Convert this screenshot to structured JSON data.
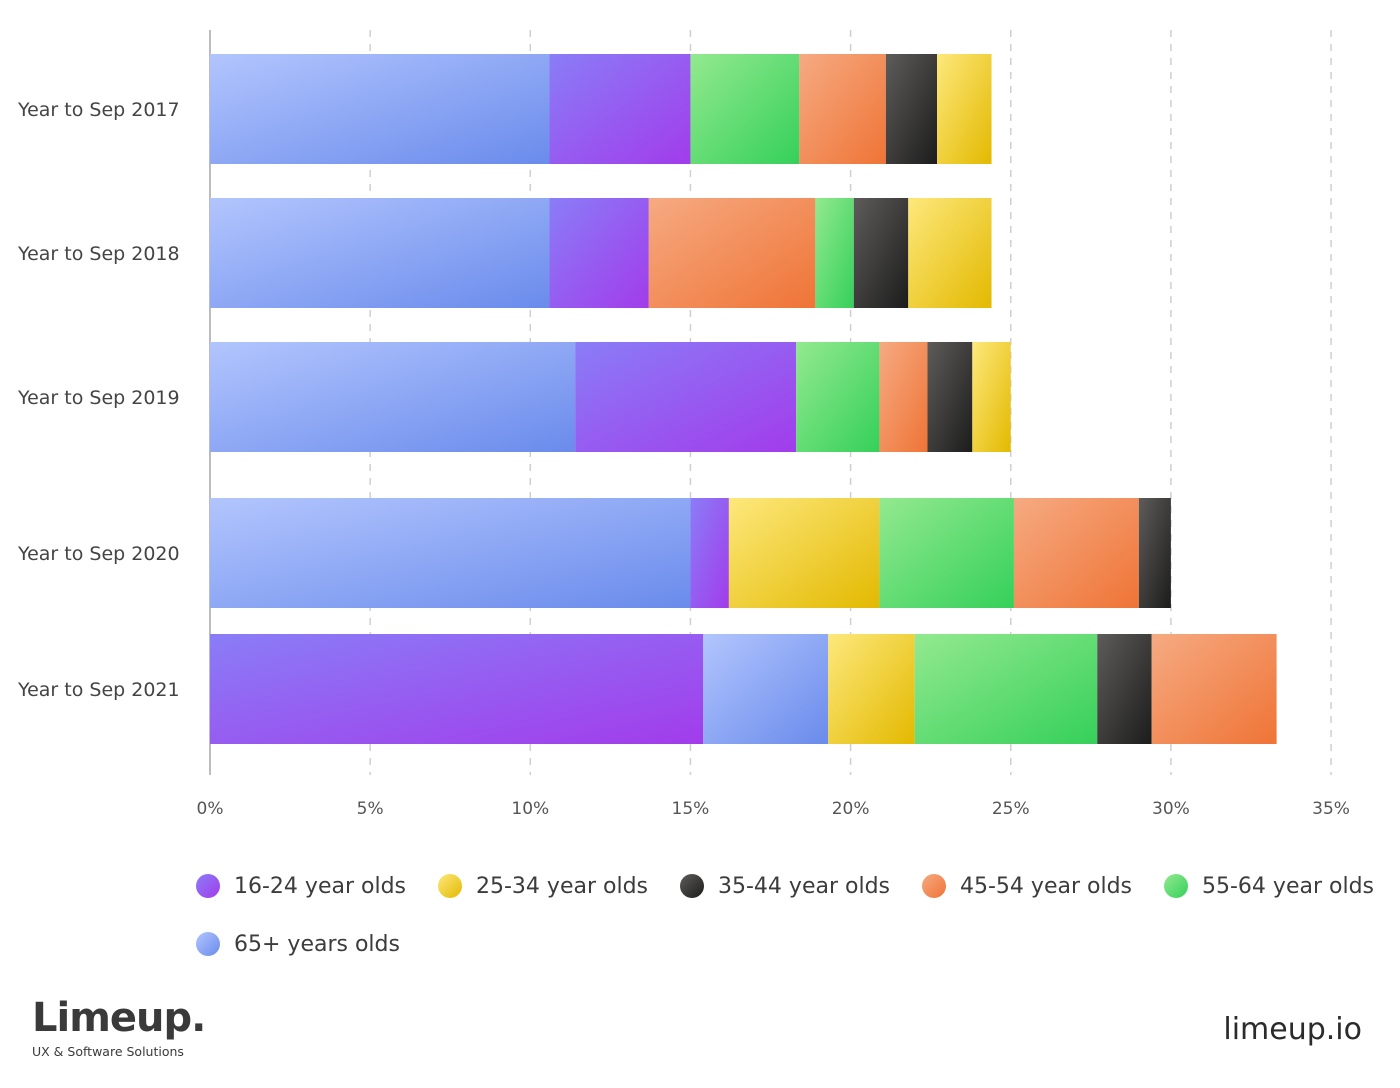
{
  "chart_data": {
    "type": "bar",
    "orientation": "horizontal",
    "stacked": true,
    "title": "",
    "xlabel": "",
    "ylabel": "",
    "xlim": [
      0,
      35
    ],
    "x_ticks": [
      "0%",
      "5%",
      "10%",
      "15%",
      "20%",
      "25%",
      "30%",
      "35%"
    ],
    "grid": "vertical dashed",
    "legend_position": "bottom",
    "categories": [
      "Year to Sep 2017",
      "Year to Sep 2018",
      "Year to Sep 2019",
      "Year to Sep 2020",
      "Year to Sep 2021"
    ],
    "series": [
      {
        "name": "16-24 year olds",
        "key": "a",
        "color": "#a23ceb",
        "light": "#8a7df7",
        "values": [
          4.4,
          3.1,
          6.9,
          1.2,
          15.4
        ]
      },
      {
        "name": "25-34 year olds",
        "key": "b",
        "color": "#e3b900",
        "light": "#fde87c",
        "values": [
          1.7,
          2.6,
          1.2,
          4.7,
          2.7
        ]
      },
      {
        "name": "35-44 year olds",
        "key": "c",
        "color": "#1c1c1c",
        "light": "#5e5c5a",
        "values": [
          1.6,
          1.7,
          1.4,
          1.0,
          1.7
        ]
      },
      {
        "name": "45-54 year olds",
        "key": "d",
        "color": "#ef7436",
        "light": "#f6aa82",
        "values": [
          2.7,
          5.2,
          1.5,
          3.9,
          3.9
        ]
      },
      {
        "name": "55-64 year olds",
        "key": "e",
        "color": "#35d05a",
        "light": "#93e98f",
        "values": [
          3.4,
          1.2,
          2.6,
          4.2,
          5.7
        ]
      },
      {
        "name": "65+ years olds",
        "key": "f",
        "color": "#6a8bec",
        "light": "#b2c5fd",
        "values": [
          10.6,
          10.6,
          11.4,
          15.0,
          3.9
        ]
      }
    ],
    "stack_order": [
      [
        "f",
        "a",
        "e",
        "d",
        "c",
        "b"
      ],
      [
        "f",
        "a",
        "d",
        "e",
        "c",
        "b"
      ],
      [
        "f",
        "a",
        "e",
        "d",
        "c",
        "b"
      ],
      [
        "f",
        "a",
        "b",
        "e",
        "d",
        "c"
      ],
      [
        "a",
        "f",
        "b",
        "e",
        "c",
        "d"
      ]
    ]
  },
  "branding": {
    "logo": "Limeup.",
    "tagline": "UX & Software Solutions",
    "site": "limeup.io"
  }
}
